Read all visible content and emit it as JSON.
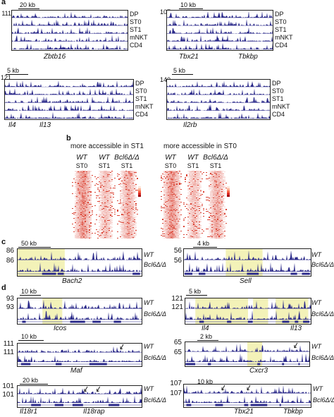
{
  "panel_a": {
    "letter": "a",
    "tracks": [
      "DP",
      "ST0",
      "ST1",
      "mNKT",
      "CD4"
    ],
    "p1": {
      "scale": "20 kb",
      "ymax": "111",
      "genes": [
        "Zbtb16"
      ]
    },
    "p2": {
      "scale": "10 kb",
      "ymax": "107",
      "genes": [
        "Tbx21",
        "Tbkbp"
      ]
    },
    "p3": {
      "scale": "5 kb",
      "ymax": "121",
      "genes": [
        "Il4",
        "Il13"
      ]
    },
    "p4": {
      "scale": "5 kb",
      "ymax": "140",
      "genes": [
        "Il2rb"
      ]
    }
  },
  "panel_b": {
    "letter": "b",
    "title_left": "more accessible in ST1",
    "title_right": "more accessible in ST0",
    "cols": [
      {
        "g": "WT",
        "s": "ST0"
      },
      {
        "g": "WT",
        "s": "ST1"
      },
      {
        "g": "Bcl6Δ/Δ",
        "s": "ST1"
      },
      {
        "g": "WT",
        "s": "ST0"
      },
      {
        "g": "WT",
        "s": "ST1"
      },
      {
        "g": "Bcl6Δ/Δ",
        "s": "ST1"
      }
    ]
  },
  "panel_c": {
    "letter": "c",
    "wt": "WT",
    "ko": "Bcl6Δ/Δ",
    "p1": {
      "scale": "50 kb",
      "y1": "86",
      "y2": "86",
      "gene": "Bach2"
    },
    "p2": {
      "scale": "4 kb",
      "y1": "56",
      "y2": "56",
      "gene": "Sell"
    }
  },
  "panel_d": {
    "letter": "d",
    "wt": "WT",
    "ko": "Bcl6Δ/Δ",
    "p1": {
      "scale": "10 kb",
      "y1": "93",
      "y2": "93",
      "genes": [
        "Icos"
      ]
    },
    "p2": {
      "scale": "5 kb",
      "y1": "121",
      "y2": "121",
      "genes": [
        "Il4",
        "Il13"
      ]
    },
    "p3": {
      "scale": "10 kb",
      "y1": "111",
      "y2": "111",
      "genes": [
        "Maf"
      ]
    },
    "p4": {
      "scale": "2 kb",
      "y1": "65",
      "y2": "65",
      "genes": [
        "Cxcr3"
      ]
    },
    "p5": {
      "scale": "20 kb",
      "y1": "101",
      "y2": "101",
      "genes": [
        "Il18r1",
        "Il18rap"
      ]
    },
    "p6": {
      "scale": "10 kb",
      "y1": "107",
      "y2": "107",
      "genes": [
        "Tbx21",
        "Tbkbp"
      ]
    }
  },
  "colors": {
    "track": "#2b2a8a",
    "highlight": "#f3f2b8",
    "heat": "#d7301f"
  }
}
